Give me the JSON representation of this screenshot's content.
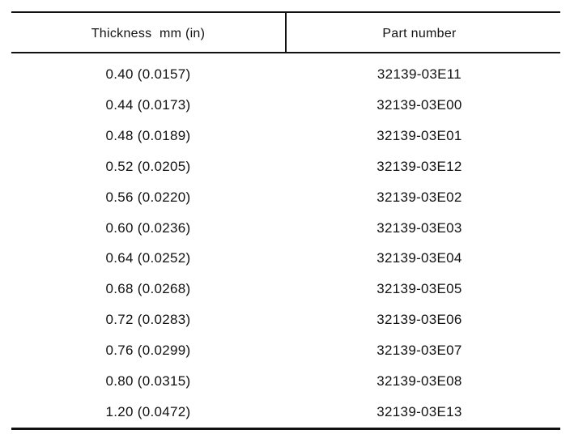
{
  "table": {
    "headers": [
      "Thickness  mm (in)",
      "Part number"
    ],
    "rows": [
      [
        "0.40 (0.0157)",
        "32139-03E11"
      ],
      [
        "0.44 (0.0173)",
        "32139-03E00"
      ],
      [
        "0.48 (0.0189)",
        "32139-03E01"
      ],
      [
        "0.52 (0.0205)",
        "32139-03E12"
      ],
      [
        "0.56 (0.0220)",
        "32139-03E02"
      ],
      [
        "0.60 (0.0236)",
        "32139-03E03"
      ],
      [
        "0.64 (0.0252)",
        "32139-03E04"
      ],
      [
        "0.68 (0.0268)",
        "32139-03E05"
      ],
      [
        "0.72 (0.0283)",
        "32139-03E06"
      ],
      [
        "0.76 (0.0299)",
        "32139-03E07"
      ],
      [
        "0.80 (0.0315)",
        "32139-03E08"
      ],
      [
        "1.20 (0.0472)",
        "32139-03E13"
      ]
    ]
  }
}
